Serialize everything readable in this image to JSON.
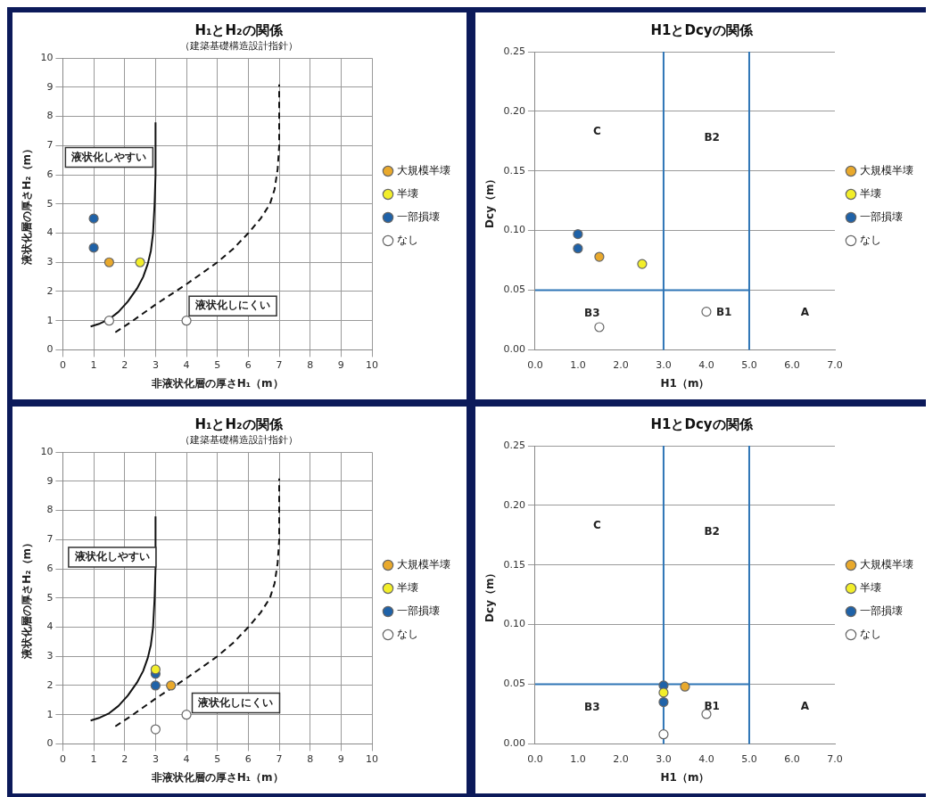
{
  "chart_data": [
    {
      "type": "scatter",
      "title": "H₁とH₂の関係",
      "subtitle": "（建築基礎構造設計指針）",
      "xlabel": "非液状化層の厚さH₁（m）",
      "ylabel": "液状化層の厚さH₂（m）",
      "xlim": [
        0,
        10
      ],
      "xticks": [
        0,
        1,
        2,
        3,
        4,
        5,
        6,
        7,
        8,
        9,
        10
      ],
      "ylim": [
        0,
        10
      ],
      "yticks": [
        0,
        1,
        2,
        3,
        4,
        5,
        6,
        7,
        8,
        9,
        10
      ],
      "grid": true,
      "legend": "right",
      "marker": "circle",
      "series": [
        {
          "type": "line",
          "color": "#111111",
          "line_style": "solid",
          "marker": "none",
          "x": [
            0.9,
            1.2,
            1.5,
            1.8,
            2.1,
            2.4,
            2.6,
            2.75,
            2.85,
            2.92,
            2.97,
            3,
            3
          ],
          "values": [
            0.8,
            0.9,
            1.05,
            1.3,
            1.65,
            2.1,
            2.5,
            2.95,
            3.4,
            4,
            5,
            6,
            7.8
          ]
        },
        {
          "type": "line",
          "color": "#111111",
          "line_style": "dashed",
          "marker": "none",
          "x": [
            1.7,
            2.2,
            3,
            4,
            5,
            5.5,
            6,
            6.4,
            6.7,
            6.85,
            6.95,
            7,
            7
          ],
          "values": [
            0.6,
            0.95,
            1.55,
            2.25,
            3,
            3.45,
            4,
            4.5,
            5,
            5.5,
            6.2,
            7,
            9.1
          ]
        },
        {
          "name": "大規模半壊",
          "color": "#e9a92c",
          "x": [
            1.5
          ],
          "values": [
            3
          ]
        },
        {
          "name": "半壊",
          "color": "#f2ee2a",
          "x": [
            2.5
          ],
          "values": [
            3
          ]
        },
        {
          "name": "一部損壊",
          "color": "#1f62a8",
          "x": [
            1,
            1
          ],
          "values": [
            4.5,
            3.5
          ]
        },
        {
          "name": "なし",
          "color": "#ffffff",
          "x": [
            1.5,
            4
          ],
          "values": [
            1,
            1
          ]
        }
      ],
      "annotations": [
        "液状化しやすい",
        "液状化しにくい"
      ]
    },
    {
      "type": "scatter",
      "title": "H1とDcyの関係",
      "xlabel": "H1（m）",
      "ylabel": "Dcy（m）",
      "xlim": [
        0,
        7
      ],
      "xticks": [
        {
          "value": 0,
          "label": "0.0"
        },
        {
          "value": 1,
          "label": "1.0"
        },
        {
          "value": 2,
          "label": "2.0"
        },
        {
          "value": 3,
          "label": "3.0"
        },
        {
          "value": 4,
          "label": "4.0"
        },
        {
          "value": 5,
          "label": "5.0"
        },
        {
          "value": 6,
          "label": "6.0"
        },
        {
          "value": 7,
          "label": "7.0"
        }
      ],
      "ylim": [
        0,
        0.25
      ],
      "yticks": [
        {
          "value": 0,
          "label": "0.00"
        },
        {
          "value": 0.05,
          "label": "0.05"
        },
        {
          "value": 0.1,
          "label": "0.10"
        },
        {
          "value": 0.15,
          "label": "0.15"
        },
        {
          "value": 0.2,
          "label": "0.20"
        },
        {
          "value": 0.25,
          "label": "0.25"
        }
      ],
      "grid": "y",
      "legend": "right",
      "marker": "circle",
      "ref_lines": [
        {
          "axis": "x",
          "value": 3,
          "color": "#2e75b6"
        },
        {
          "axis": "x",
          "value": 5,
          "color": "#2e75b6"
        }
      ],
      "series": [
        {
          "type": "line",
          "color": "#2e75b6",
          "line_style": "solid",
          "marker": "none",
          "x": [
            0,
            5
          ],
          "values": [
            0.05,
            0.05
          ]
        },
        {
          "name": "大規模半壊",
          "color": "#e9a92c",
          "x": [
            1.5
          ],
          "values": [
            0.078
          ]
        },
        {
          "name": "半壊",
          "color": "#f2ee2a",
          "x": [
            2.5
          ],
          "values": [
            0.072
          ]
        },
        {
          "name": "一部損壊",
          "color": "#1f62a8",
          "x": [
            1,
            1
          ],
          "values": [
            0.097,
            0.085
          ]
        },
        {
          "name": "なし",
          "color": "#ffffff",
          "x": [
            1.5,
            4
          ],
          "values": [
            0.019,
            0.032
          ]
        }
      ],
      "annotations": [
        "C",
        "B2",
        "B3",
        "B1",
        "A"
      ]
    },
    {
      "type": "scatter",
      "title": "H₁とH₂の関係",
      "subtitle": "（建築基礎構造設計指針）",
      "xlabel": "非液状化層の厚さH₁（m）",
      "ylabel": "液状化層の厚さH₂（m）",
      "xlim": [
        0,
        10
      ],
      "xticks": [
        0,
        1,
        2,
        3,
        4,
        5,
        6,
        7,
        8,
        9,
        10
      ],
      "ylim": [
        0,
        10
      ],
      "yticks": [
        0,
        1,
        2,
        3,
        4,
        5,
        6,
        7,
        8,
        9,
        10
      ],
      "grid": true,
      "legend": "right",
      "marker": "circle",
      "series": [
        {
          "type": "line",
          "color": "#111111",
          "line_style": "solid",
          "marker": "none",
          "x": [
            0.9,
            1.2,
            1.5,
            1.8,
            2.1,
            2.4,
            2.6,
            2.75,
            2.85,
            2.92,
            2.97,
            3,
            3
          ],
          "values": [
            0.8,
            0.9,
            1.05,
            1.3,
            1.65,
            2.1,
            2.5,
            2.95,
            3.4,
            4,
            5,
            6,
            7.8
          ]
        },
        {
          "type": "line",
          "color": "#111111",
          "line_style": "dashed",
          "marker": "none",
          "x": [
            1.7,
            2.2,
            3,
            4,
            5,
            5.5,
            6,
            6.4,
            6.7,
            6.85,
            6.95,
            7,
            7
          ],
          "values": [
            0.6,
            0.95,
            1.55,
            2.25,
            3,
            3.45,
            4,
            4.5,
            5,
            5.5,
            6.2,
            7,
            9.1
          ]
        },
        {
          "name": "大規模半壊",
          "color": "#e9a92c",
          "x": [
            3.5
          ],
          "values": [
            2
          ]
        },
        {
          "name": "半壊",
          "color": "#f2ee2a",
          "x": [
            3
          ],
          "values": [
            2.55
          ]
        },
        {
          "name": "一部損壊",
          "color": "#1f62a8",
          "x": [
            3,
            3
          ],
          "values": [
            2.4,
            2
          ]
        },
        {
          "name": "なし",
          "color": "#ffffff",
          "x": [
            3,
            4
          ],
          "values": [
            0.5,
            1
          ]
        }
      ],
      "annotations": [
        "液状化しやすい",
        "液状化しにくい"
      ]
    },
    {
      "type": "scatter",
      "title": "H1とDcyの関係",
      "xlabel": "H1（m）",
      "ylabel": "Dcy（m）",
      "xlim": [
        0,
        7
      ],
      "xticks": [
        {
          "value": 0,
          "label": "0.0"
        },
        {
          "value": 1,
          "label": "1.0"
        },
        {
          "value": 2,
          "label": "2.0"
        },
        {
          "value": 3,
          "label": "3.0"
        },
        {
          "value": 4,
          "label": "4.0"
        },
        {
          "value": 5,
          "label": "5.0"
        },
        {
          "value": 6,
          "label": "6.0"
        },
        {
          "value": 7,
          "label": "7.0"
        }
      ],
      "ylim": [
        0,
        0.25
      ],
      "yticks": [
        {
          "value": 0,
          "label": "0.00"
        },
        {
          "value": 0.05,
          "label": "0.05"
        },
        {
          "value": 0.1,
          "label": "0.10"
        },
        {
          "value": 0.15,
          "label": "0.15"
        },
        {
          "value": 0.2,
          "label": "0.20"
        },
        {
          "value": 0.25,
          "label": "0.25"
        }
      ],
      "grid": "y",
      "legend": "right",
      "marker": "circle",
      "ref_lines": [
        {
          "axis": "x",
          "value": 3,
          "color": "#2e75b6"
        },
        {
          "axis": "x",
          "value": 5,
          "color": "#2e75b6"
        }
      ],
      "series": [
        {
          "type": "line",
          "color": "#2e75b6",
          "line_style": "solid",
          "marker": "none",
          "x": [
            0,
            5
          ],
          "values": [
            0.05,
            0.05
          ]
        },
        {
          "name": "大規模半壊",
          "color": "#e9a92c",
          "x": [
            3.5
          ],
          "values": [
            0.048
          ]
        },
        {
          "name": "半壊",
          "color": "#f2ee2a",
          "x": [
            3
          ],
          "values": [
            0.043
          ]
        },
        {
          "name": "一部損壊",
          "color": "#1f62a8",
          "x": [
            3,
            3
          ],
          "values": [
            0.049,
            0.035
          ]
        },
        {
          "name": "なし",
          "color": "#ffffff",
          "x": [
            3,
            4
          ],
          "values": [
            0.008,
            0.025
          ]
        }
      ],
      "annotations": [
        "C",
        "B2",
        "B3",
        "B1",
        "A"
      ]
    }
  ]
}
